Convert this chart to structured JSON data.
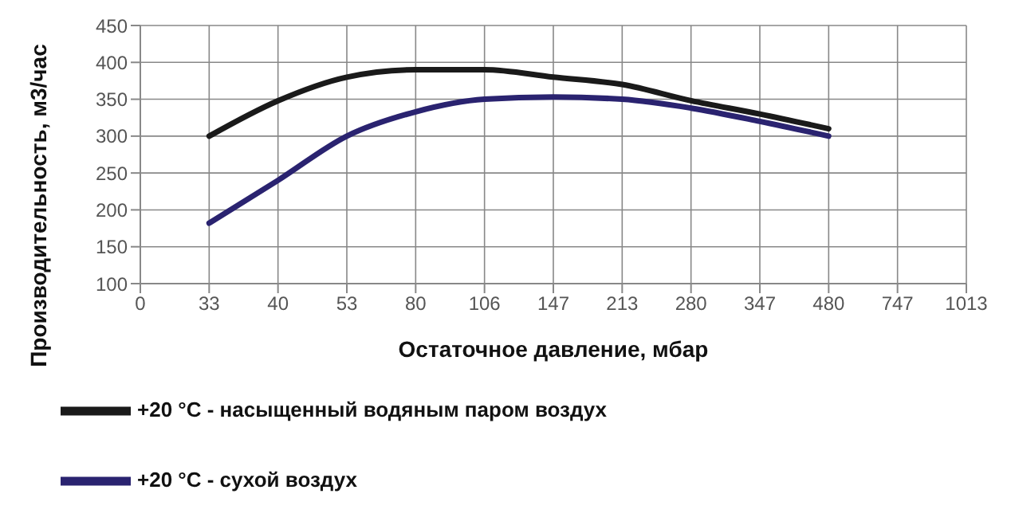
{
  "chart_data": {
    "type": "line",
    "xlabel": "Остаточное давление, мбар",
    "ylabel": "Производительность, м3/час",
    "categories": [
      "0",
      "33",
      "40",
      "53",
      "80",
      "106",
      "147",
      "213",
      "280",
      "347",
      "480",
      "747",
      "1013"
    ],
    "series": [
      {
        "name": "+20 °C - насыщенный водяным паром воздух",
        "color": "#1a1a1a",
        "values": [
          null,
          300,
          348,
          380,
          390,
          390,
          380,
          370,
          348,
          330,
          310,
          null,
          null
        ]
      },
      {
        "name": "+20 °C - сухой воздух",
        "color": "#2a2370",
        "values": [
          null,
          182,
          240,
          300,
          333,
          350,
          353,
          350,
          338,
          320,
          300,
          null,
          null
        ]
      }
    ],
    "ylim": [
      100,
      450
    ],
    "yticks": [
      100,
      150,
      200,
      250,
      300,
      350,
      400,
      450
    ],
    "grid": true,
    "legend": "bottom",
    "marker": "none",
    "line_style": "solid"
  }
}
